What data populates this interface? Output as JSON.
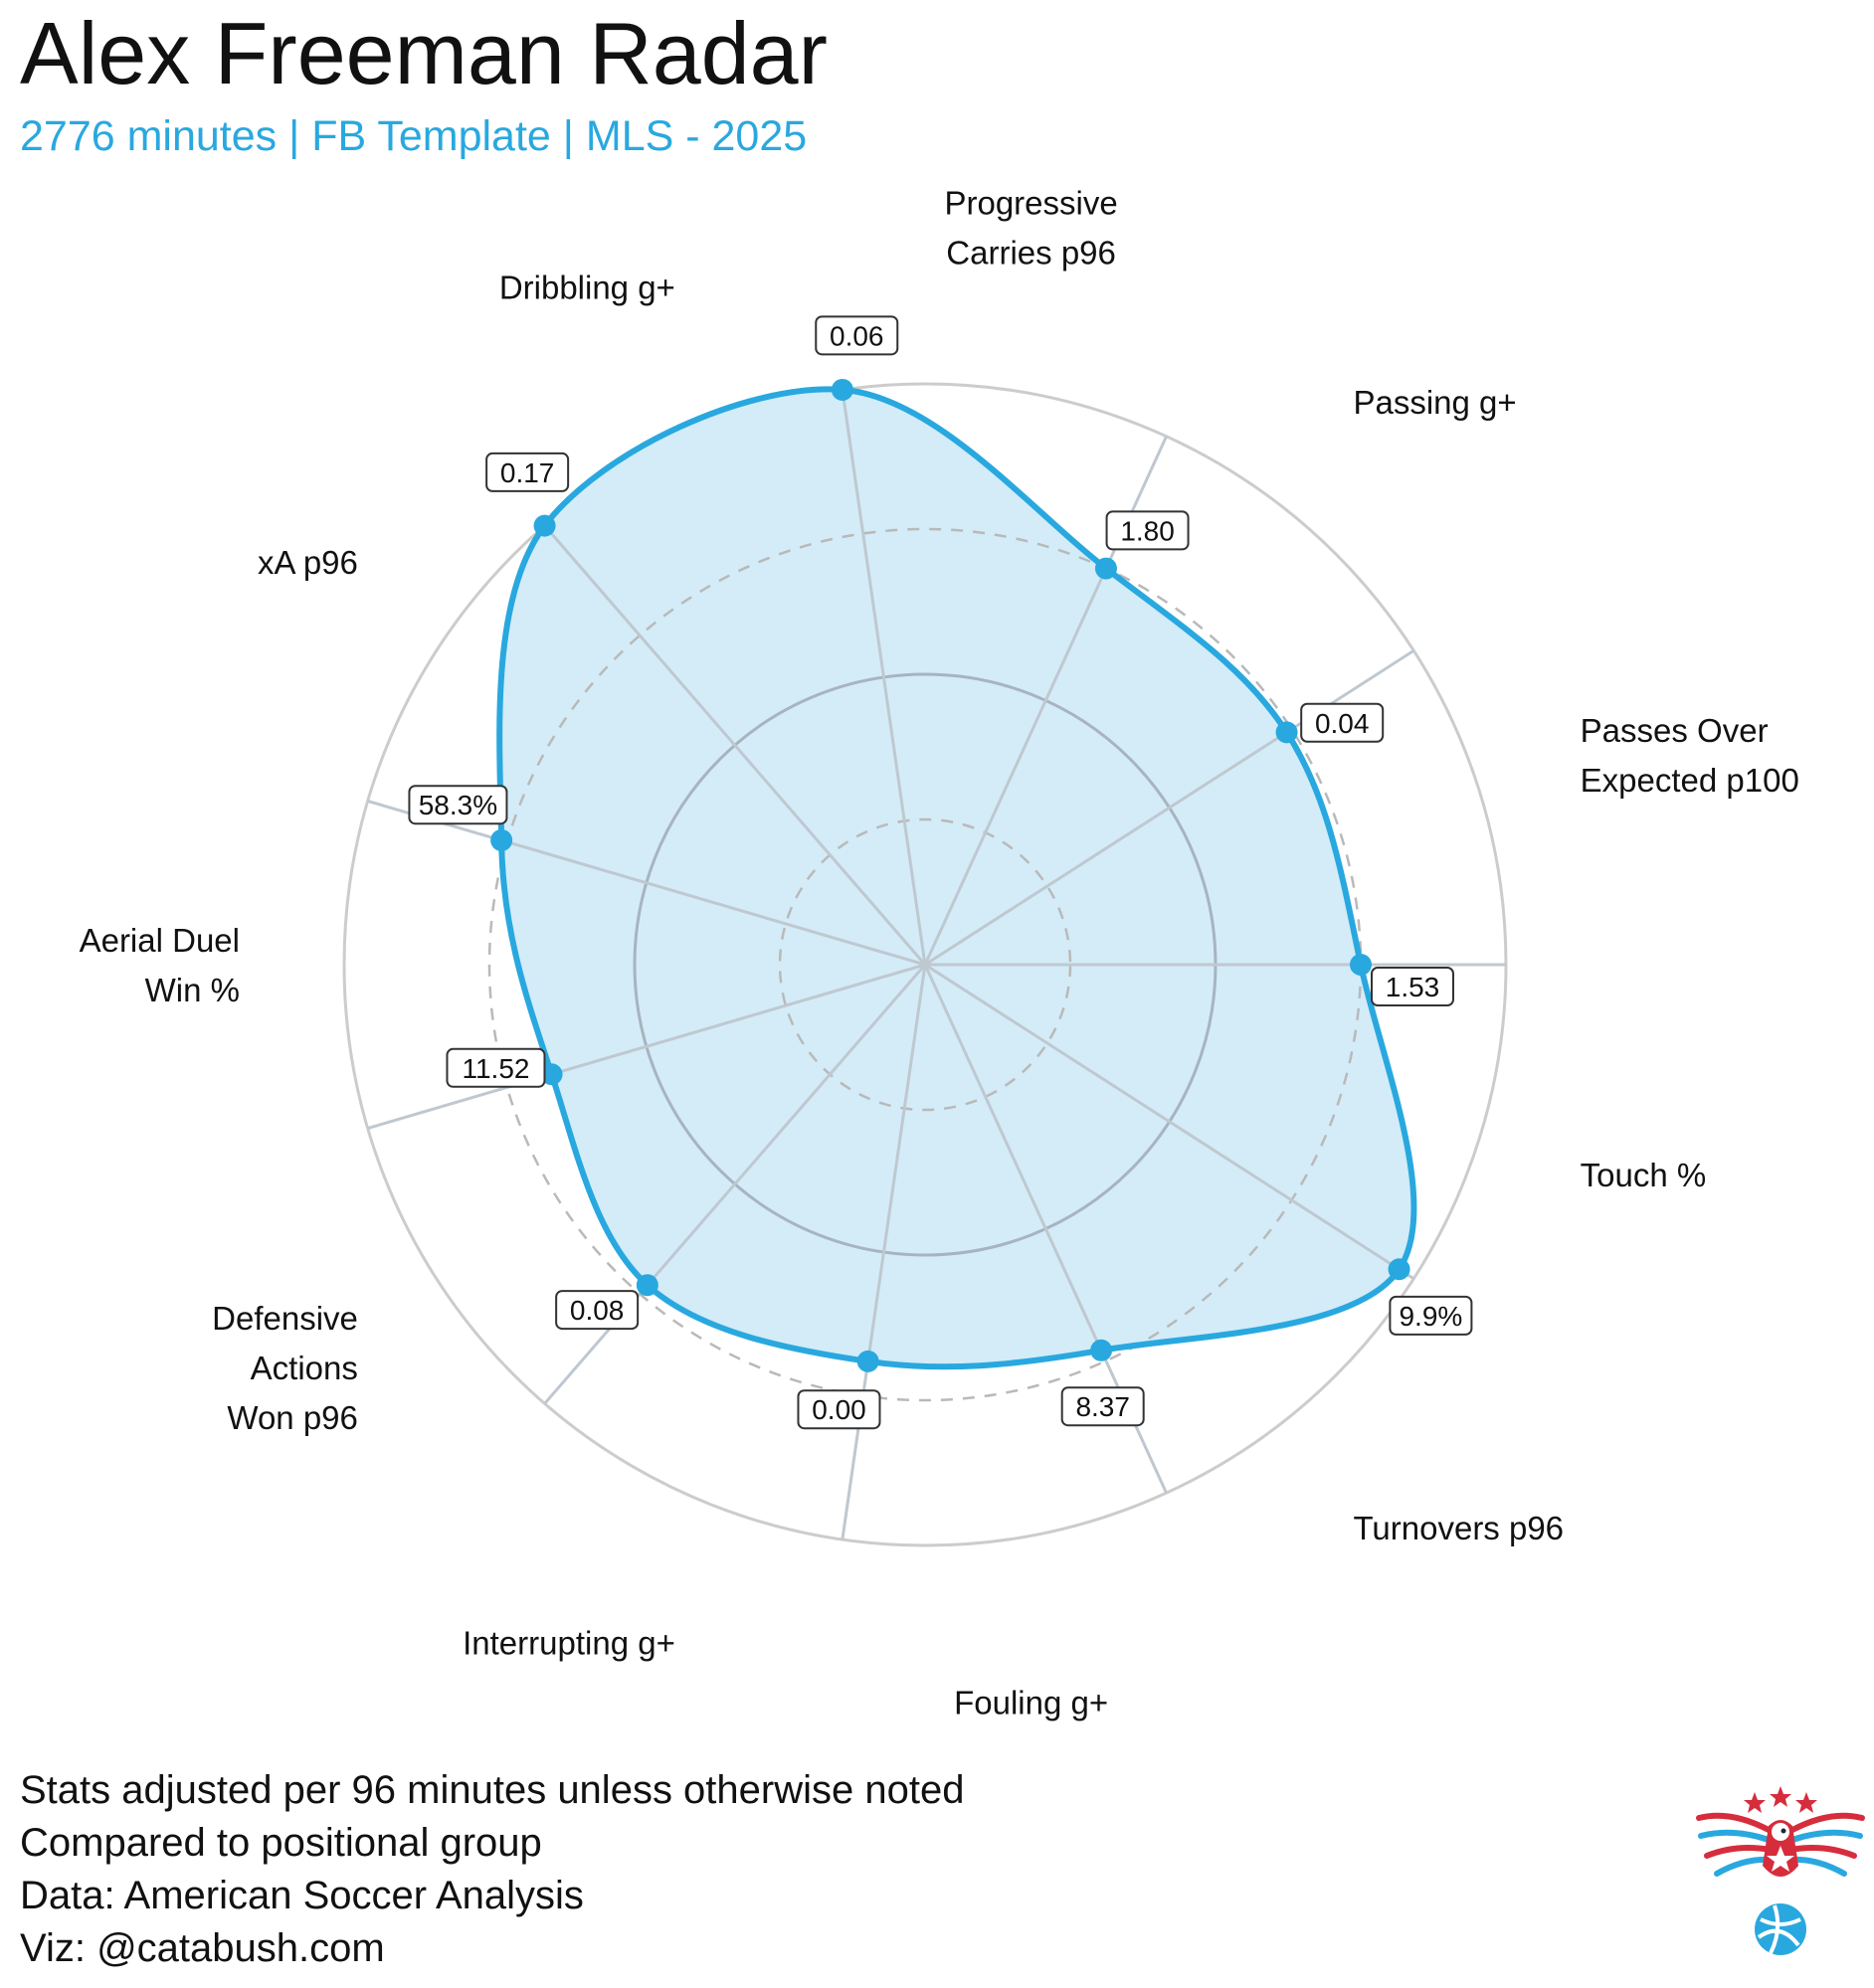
{
  "header": {
    "title": "Alex Freeman Radar",
    "subtitle": "2776 minutes | FB Template | MLS - 2025"
  },
  "colors": {
    "accent": "#29a8df",
    "fill": "#d3ecf8",
    "grid": "#cccccc",
    "inner_ring": "#a7b4bf"
  },
  "chart_data": {
    "type": "radar",
    "title": "Alex Freeman Radar",
    "subtitle": "2776 minutes | FB Template | MLS - 2025",
    "scale": "percentile",
    "rlim": [
      0,
      100
    ],
    "rings": [
      25,
      50,
      75,
      100
    ],
    "categories": [
      {
        "name": [
          "Passes Over",
          "Expected p100"
        ],
        "value_label": "1.53",
        "percentile": 75
      },
      {
        "name": [
          "Passing g+"
        ],
        "value_label": "0.04",
        "percentile": 74
      },
      {
        "name": [
          "Progressive",
          "Carries p96"
        ],
        "value_label": "1.80",
        "percentile": 75
      },
      {
        "name": [
          "Dribbling g+"
        ],
        "value_label": "0.06",
        "percentile": 100
      },
      {
        "name": [
          "xA p96"
        ],
        "value_label": "0.17",
        "percentile": 100
      },
      {
        "name": [
          "Aerial Duel",
          "Win %"
        ],
        "value_label": "58.3%",
        "percentile": 76
      },
      {
        "name": [
          "Defensive",
          "Actions",
          "Won p96"
        ],
        "value_label": "11.52",
        "percentile": 67
      },
      {
        "name": [
          "Interrupting g+"
        ],
        "value_label": "0.08",
        "percentile": 73
      },
      {
        "name": [
          "Fouling g+"
        ],
        "value_label": "0.00",
        "percentile": 69
      },
      {
        "name": [
          "Turnovers p96"
        ],
        "value_label": "8.37",
        "percentile": 73
      },
      {
        "name": [
          "Touch %"
        ],
        "value_label": "9.9%",
        "percentile": 97
      }
    ]
  },
  "footer": {
    "lines": [
      "Stats adjusted per 96 minutes unless otherwise noted",
      "Compared to positional group",
      "Data: American Soccer Analysis",
      "Viz: @catabush.com"
    ]
  },
  "logo": {
    "icon": "eagle-soccer-logo-icon"
  }
}
